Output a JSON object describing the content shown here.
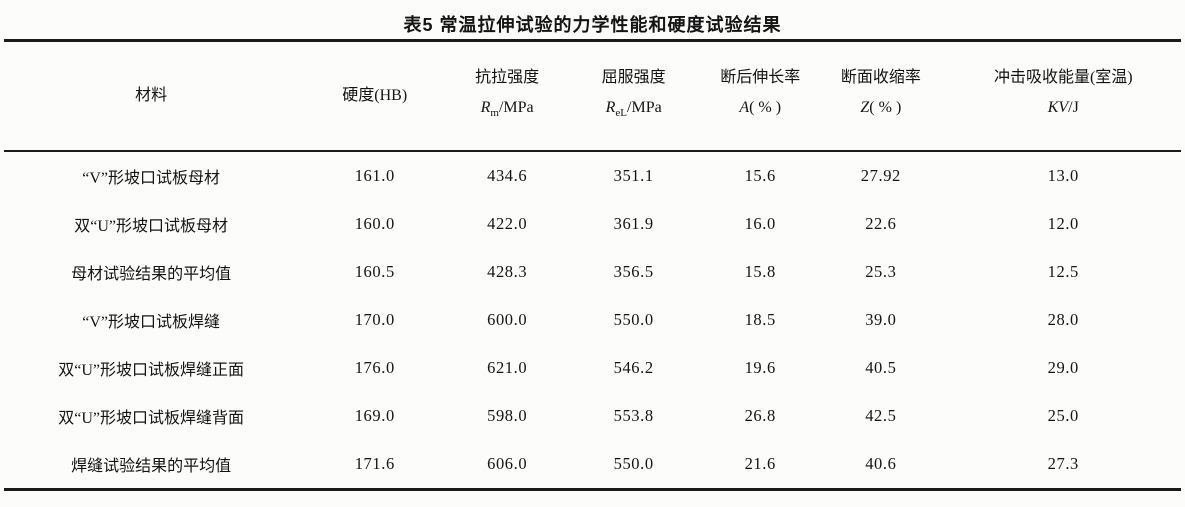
{
  "page": {
    "title": "表5  常温拉伸试验的力学性能和硬度试验结果"
  },
  "table": {
    "headers": [
      {
        "line1": "材料"
      },
      {
        "line1": "硬度(HB)"
      },
      {
        "line1": "抗拉强度",
        "sym": "R",
        "sub": "m",
        "unit": "/MPa"
      },
      {
        "line1": "屈服强度",
        "sym": "R",
        "sub": "eL",
        "unit": "/MPa"
      },
      {
        "line1": "断后伸长率",
        "sym": "A",
        "sub": "",
        "unit": "( % )"
      },
      {
        "line1": "断面收缩率",
        "sym": "Z",
        "sub": "",
        "unit": "( % )"
      },
      {
        "line1": "冲击吸收能量(室温)",
        "sym": "KV",
        "sub": "",
        "unit": "/J"
      }
    ],
    "rows": [
      {
        "material": "“V”形坡口试板母材",
        "values": [
          "161.0",
          "434.6",
          "351.1",
          "15.6",
          "27.92",
          "13.0"
        ]
      },
      {
        "material": "双“U”形坡口试板母材",
        "values": [
          "160.0",
          "422.0",
          "361.9",
          "16.0",
          "22.6",
          "12.0"
        ]
      },
      {
        "material": "母材试验结果的平均值",
        "values": [
          "160.5",
          "428.3",
          "356.5",
          "15.8",
          "25.3",
          "12.5"
        ]
      },
      {
        "material": "“V”形坡口试板焊缝",
        "values": [
          "170.0",
          "600.0",
          "550.0",
          "18.5",
          "39.0",
          "28.0"
        ]
      },
      {
        "material": "双“U”形坡口试板焊缝正面",
        "values": [
          "176.0",
          "621.0",
          "546.2",
          "19.6",
          "40.5",
          "29.0"
        ]
      },
      {
        "material": "双“U”形坡口试板焊缝背面",
        "values": [
          "169.0",
          "598.0",
          "553.8",
          "26.8",
          "42.5",
          "25.0"
        ]
      },
      {
        "material": "焊缝试验结果的平均值",
        "values": [
          "171.6",
          "606.0",
          "550.0",
          "21.6",
          "40.6",
          "27.3"
        ]
      }
    ]
  }
}
